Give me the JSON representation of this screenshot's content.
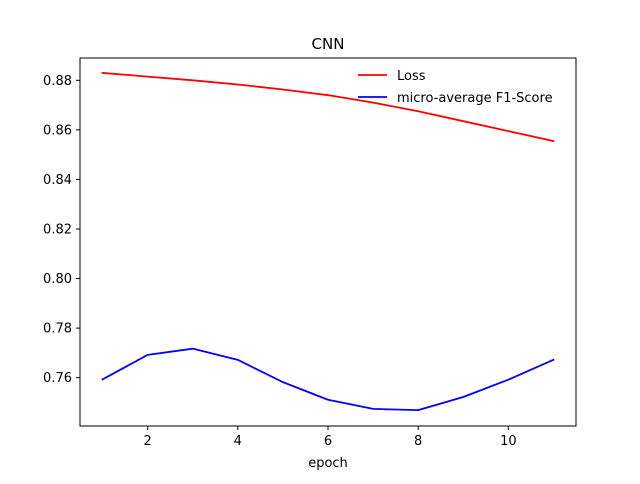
{
  "chart_data": {
    "type": "line",
    "title": "CNN",
    "xlabel": "epoch",
    "ylabel": "",
    "x": [
      1,
      2,
      3,
      4,
      5,
      6,
      7,
      8,
      9,
      10,
      11
    ],
    "xlim": [
      0.5,
      11.5
    ],
    "ylim": [
      0.7405,
      0.889
    ],
    "xticks": [
      2,
      4,
      6,
      8,
      10
    ],
    "xtick_labels": [
      "2",
      "4",
      "6",
      "8",
      "10"
    ],
    "yticks": [
      0.76,
      0.78,
      0.8,
      0.82,
      0.84,
      0.86,
      0.88
    ],
    "ytick_labels": [
      "0.76",
      "0.78",
      "0.80",
      "0.82",
      "0.84",
      "0.86",
      "0.88"
    ],
    "grid": false,
    "legend_position": "top-right",
    "series": [
      {
        "name": "Loss",
        "color": "#ff0000",
        "values": [
          0.883,
          0.8815,
          0.88,
          0.8783,
          0.8763,
          0.874,
          0.871,
          0.8675,
          0.8635,
          0.8595,
          0.8555
        ]
      },
      {
        "name": "micro-average F1-Score",
        "color": "#0000ff",
        "values": [
          0.7593,
          0.7692,
          0.7717,
          0.7672,
          0.7582,
          0.7511,
          0.7474,
          0.7469,
          0.7522,
          0.7592,
          0.7672
        ]
      }
    ]
  }
}
